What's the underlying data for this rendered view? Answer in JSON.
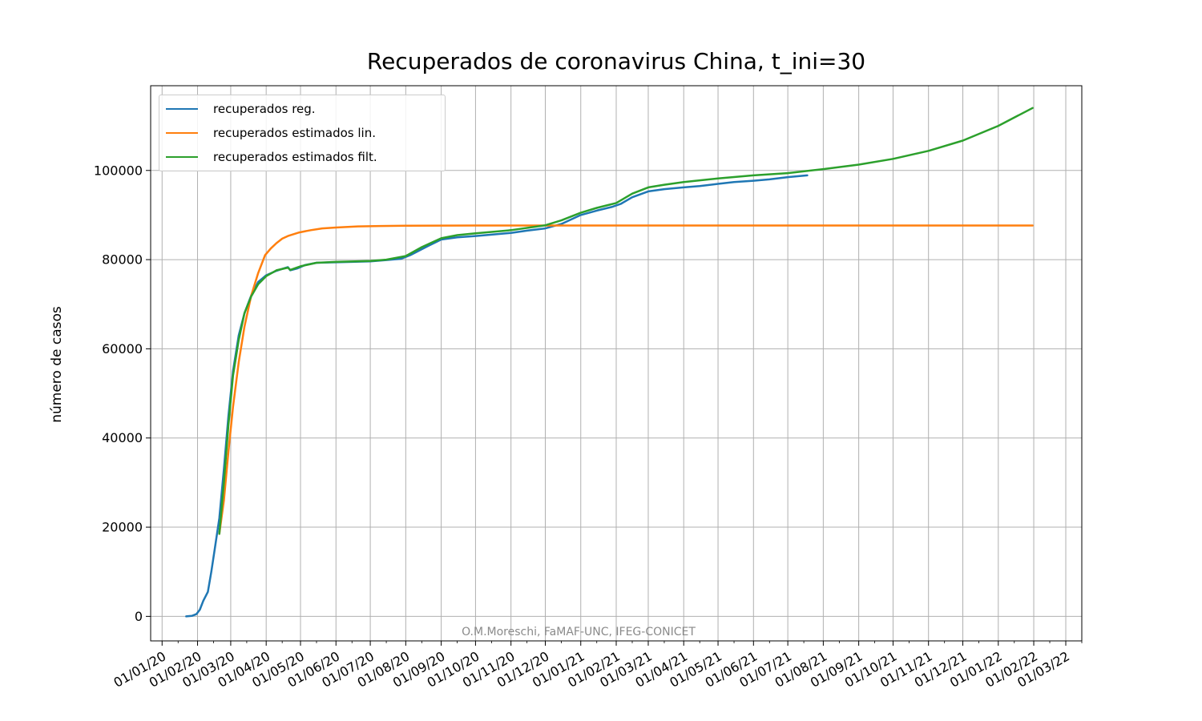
{
  "chart_data": {
    "type": "line",
    "title": "Recuperados de coronavirus China, t_ini=30",
    "ylabel": "número de casos",
    "xlabel": "",
    "x_axis_type": "date",
    "xlim": [
      "2019-12-22",
      "2022-03-15"
    ],
    "ylim": [
      -5500,
      119000
    ],
    "x_tick_labels": [
      "01/01/20",
      "01/02/20",
      "01/03/20",
      "01/04/20",
      "01/05/20",
      "01/06/20",
      "01/07/20",
      "01/08/20",
      "01/09/20",
      "01/10/20",
      "01/11/20",
      "01/12/20",
      "01/01/21",
      "01/02/21",
      "01/03/21",
      "01/04/21",
      "01/05/21",
      "01/06/21",
      "01/07/21",
      "01/08/21",
      "01/09/21",
      "01/10/21",
      "01/11/21",
      "01/12/21",
      "01/01/22",
      "01/02/22",
      "01/03/22"
    ],
    "x_tick_dates": [
      "2020-01-01",
      "2020-02-01",
      "2020-03-01",
      "2020-04-01",
      "2020-05-01",
      "2020-06-01",
      "2020-07-01",
      "2020-08-01",
      "2020-09-01",
      "2020-10-01",
      "2020-11-01",
      "2020-12-01",
      "2021-01-01",
      "2021-02-01",
      "2021-03-01",
      "2021-04-01",
      "2021-05-01",
      "2021-06-01",
      "2021-07-01",
      "2021-08-01",
      "2021-09-01",
      "2021-10-01",
      "2021-11-01",
      "2021-12-01",
      "2022-01-01",
      "2022-02-01",
      "2022-03-01"
    ],
    "y_ticks": [
      0,
      20000,
      40000,
      60000,
      80000,
      100000
    ],
    "y_tick_labels": [
      "0",
      "20000",
      "40000",
      "60000",
      "80000",
      "100000"
    ],
    "grid": true,
    "legend_position": "top-left",
    "series": [
      {
        "name": "recuperados reg.",
        "color": "#1f77b4",
        "points": [
          [
            "2020-01-22",
            0
          ],
          [
            "2020-01-27",
            100
          ],
          [
            "2020-01-31",
            500
          ],
          [
            "2020-02-03",
            1500
          ],
          [
            "2020-02-06",
            3500
          ],
          [
            "2020-02-10",
            5500
          ],
          [
            "2020-02-13",
            10000
          ],
          [
            "2020-02-16",
            15000
          ],
          [
            "2020-02-20",
            22000
          ],
          [
            "2020-02-24",
            33000
          ],
          [
            "2020-02-28",
            45000
          ],
          [
            "2020-03-03",
            55000
          ],
          [
            "2020-03-08",
            63000
          ],
          [
            "2020-03-13",
            68000
          ],
          [
            "2020-03-19",
            72000
          ],
          [
            "2020-03-25",
            75000
          ],
          [
            "2020-04-01",
            76500
          ],
          [
            "2020-04-10",
            77500
          ],
          [
            "2020-04-16",
            78000
          ],
          [
            "2020-04-20",
            78300
          ],
          [
            "2020-04-22",
            77600
          ],
          [
            "2020-04-28",
            78000
          ],
          [
            "2020-05-05",
            78800
          ],
          [
            "2020-05-15",
            79300
          ],
          [
            "2020-06-01",
            79400
          ],
          [
            "2020-06-15",
            79500
          ],
          [
            "2020-07-01",
            79600
          ],
          [
            "2020-07-15",
            79900
          ],
          [
            "2020-07-28",
            80200
          ],
          [
            "2020-08-05",
            81000
          ],
          [
            "2020-08-20",
            83000
          ],
          [
            "2020-09-01",
            84500
          ],
          [
            "2020-09-15",
            85000
          ],
          [
            "2020-10-01",
            85300
          ],
          [
            "2020-10-15",
            85600
          ],
          [
            "2020-11-01",
            86000
          ],
          [
            "2020-11-15",
            86500
          ],
          [
            "2020-12-01",
            87000
          ],
          [
            "2020-12-15",
            88000
          ],
          [
            "2021-01-01",
            90000
          ],
          [
            "2021-01-15",
            91000
          ],
          [
            "2021-01-28",
            91800
          ],
          [
            "2021-02-05",
            92500
          ],
          [
            "2021-02-15",
            94000
          ],
          [
            "2021-03-01",
            95300
          ],
          [
            "2021-03-15",
            95800
          ],
          [
            "2021-04-01",
            96200
          ],
          [
            "2021-04-15",
            96500
          ],
          [
            "2021-05-01",
            97000
          ],
          [
            "2021-05-15",
            97400
          ],
          [
            "2021-06-01",
            97700
          ],
          [
            "2021-06-15",
            98000
          ],
          [
            "2021-07-01",
            98500
          ],
          [
            "2021-07-18",
            98900
          ]
        ]
      },
      {
        "name": "recuperados estimados lin.",
        "color": "#ff7f0e",
        "points": [
          [
            "2020-02-20",
            18500
          ],
          [
            "2020-02-24",
            26000
          ],
          [
            "2020-02-28",
            37000
          ],
          [
            "2020-03-03",
            47000
          ],
          [
            "2020-03-08",
            57000
          ],
          [
            "2020-03-13",
            65000
          ],
          [
            "2020-03-19",
            72000
          ],
          [
            "2020-03-25",
            77000
          ],
          [
            "2020-03-31",
            81000
          ],
          [
            "2020-04-05",
            82500
          ],
          [
            "2020-04-10",
            83700
          ],
          [
            "2020-04-15",
            84700
          ],
          [
            "2020-04-20",
            85300
          ],
          [
            "2020-04-30",
            86100
          ],
          [
            "2020-05-10",
            86600
          ],
          [
            "2020-05-20",
            87000
          ],
          [
            "2020-06-01",
            87200
          ],
          [
            "2020-06-20",
            87450
          ],
          [
            "2020-07-10",
            87550
          ],
          [
            "2020-08-01",
            87600
          ],
          [
            "2020-10-01",
            87650
          ],
          [
            "2022-01-31",
            87650
          ]
        ]
      },
      {
        "name": "recuperados estimados filt.",
        "color": "#2ca02c",
        "points": [
          [
            "2020-02-20",
            18500
          ],
          [
            "2020-02-24",
            30000
          ],
          [
            "2020-02-28",
            43000
          ],
          [
            "2020-03-03",
            54000
          ],
          [
            "2020-03-08",
            62000
          ],
          [
            "2020-03-13",
            68000
          ],
          [
            "2020-03-19",
            71800
          ],
          [
            "2020-03-25",
            74500
          ],
          [
            "2020-04-01",
            76300
          ],
          [
            "2020-04-10",
            77600
          ],
          [
            "2020-04-20",
            78200
          ],
          [
            "2020-04-22",
            77700
          ],
          [
            "2020-05-01",
            78500
          ],
          [
            "2020-05-15",
            79300
          ],
          [
            "2020-06-01",
            79500
          ],
          [
            "2020-07-01",
            79700
          ],
          [
            "2020-07-15",
            80000
          ],
          [
            "2020-08-01",
            80800
          ],
          [
            "2020-08-15",
            82800
          ],
          [
            "2020-09-01",
            84800
          ],
          [
            "2020-09-15",
            85500
          ],
          [
            "2020-10-01",
            85900
          ],
          [
            "2020-11-01",
            86600
          ],
          [
            "2020-12-01",
            87700
          ],
          [
            "2020-12-15",
            88800
          ],
          [
            "2021-01-01",
            90500
          ],
          [
            "2021-01-15",
            91600
          ],
          [
            "2021-02-01",
            92700
          ],
          [
            "2021-02-15",
            94800
          ],
          [
            "2021-03-01",
            96200
          ],
          [
            "2021-03-15",
            96800
          ],
          [
            "2021-04-01",
            97400
          ],
          [
            "2021-05-01",
            98200
          ],
          [
            "2021-06-01",
            98900
          ],
          [
            "2021-07-01",
            99400
          ],
          [
            "2021-08-01",
            100300
          ],
          [
            "2021-09-01",
            101300
          ],
          [
            "2021-10-01",
            102600
          ],
          [
            "2021-11-01",
            104400
          ],
          [
            "2021-12-01",
            106700
          ],
          [
            "2022-01-01",
            110000
          ],
          [
            "2022-01-31",
            114000
          ]
        ]
      }
    ]
  },
  "watermark": "O.M.Moreschi, FaMAF-UNC, IFEG-CONICET"
}
